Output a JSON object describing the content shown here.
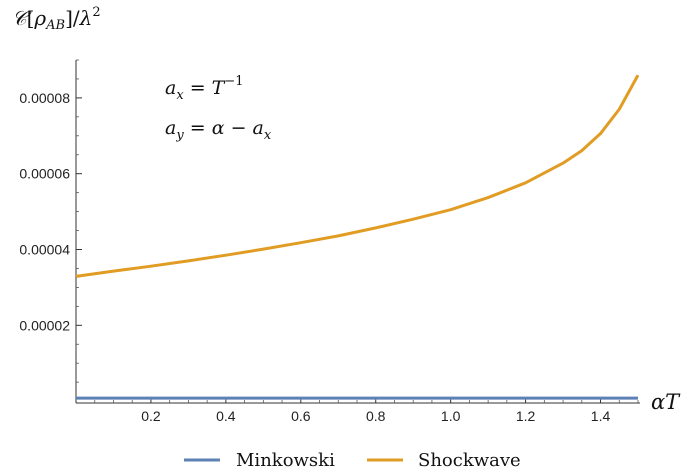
{
  "chart_data": {
    "type": "line",
    "ylabel": "𝒞[ρAB]/λ²",
    "xlabel": "αT",
    "xlim": [
      0,
      1.5
    ],
    "ylim": [
      -5e-07,
      9e-05
    ],
    "grid": false,
    "legend_position": "bottom",
    "x_ticks": [
      {
        "value": 0.2,
        "label": "0.2"
      },
      {
        "value": 0.4,
        "label": "0.4"
      },
      {
        "value": 0.6,
        "label": "0.6"
      },
      {
        "value": 0.8,
        "label": "0.8"
      },
      {
        "value": 1.0,
        "label": "1.0"
      },
      {
        "value": 1.2,
        "label": "1.2"
      },
      {
        "value": 1.4,
        "label": "1.4"
      }
    ],
    "y_ticks": [
      {
        "value": 2e-05,
        "label": "0.00002"
      },
      {
        "value": 4e-05,
        "label": "0.00004"
      },
      {
        "value": 6e-05,
        "label": "0.00006"
      },
      {
        "value": 8e-05,
        "label": "0.00008"
      }
    ],
    "annotations": [
      "ax = T⁻¹",
      "ay = α − ax"
    ],
    "x": [
      0,
      0.1,
      0.2,
      0.3,
      0.4,
      0.5,
      0.6,
      0.7,
      0.8,
      0.9,
      1.0,
      1.1,
      1.2,
      1.3,
      1.35,
      1.4,
      1.45,
      1.5
    ],
    "series": [
      {
        "name": "Minkowski",
        "color": "#5e81b5",
        "values": [
          8e-07,
          8e-07,
          8e-07,
          8e-07,
          8e-07,
          8e-07,
          8e-07,
          8e-07,
          8e-07,
          8e-07,
          8e-07,
          8e-07,
          8e-07,
          8e-07,
          8e-07,
          8e-07,
          8e-07,
          8e-07
        ]
      },
      {
        "name": "Shockwave",
        "color": "#e19c24",
        "values": [
          3.29e-05,
          3.43e-05,
          3.56e-05,
          3.7e-05,
          3.85e-05,
          4.01e-05,
          4.18e-05,
          4.36e-05,
          4.57e-05,
          4.8e-05,
          5.05e-05,
          5.37e-05,
          5.76e-05,
          6.28e-05,
          6.61e-05,
          7.06e-05,
          7.7e-05,
          8.6e-05
        ]
      }
    ]
  }
}
